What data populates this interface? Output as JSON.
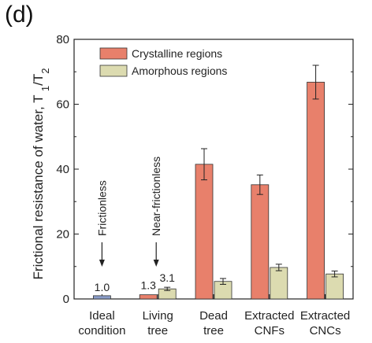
{
  "panel_label": "(d)",
  "chart_data": {
    "type": "bar",
    "ylabel": "Frictional resistance of water, T",
    "ylabel_sub1": "1",
    "ylabel_slash": "/T",
    "ylabel_sub2": "2",
    "ylim": [
      0,
      80
    ],
    "yticks": [
      "0",
      "20",
      "40",
      "60",
      "80"
    ],
    "legend_position": "top-left",
    "categories": [
      {
        "line1": "Ideal",
        "line2": "condition"
      },
      {
        "line1": "Living",
        "line2": "tree"
      },
      {
        "line1": "Dead",
        "line2": "tree"
      },
      {
        "line1": "Extracted",
        "line2": "CNFs"
      },
      {
        "line1": "Extracted",
        "line2": "CNCs"
      }
    ],
    "ideal": {
      "value": 1.0,
      "label": "1.0",
      "color": "#8a9cc9"
    },
    "series": [
      {
        "name": "Crystalline regions",
        "color": "#e8806b",
        "values": [
          null,
          1.3,
          41.5,
          35.2,
          66.8
        ],
        "errors": [
          null,
          0,
          4.8,
          3.0,
          5.2
        ]
      },
      {
        "name": "Amorphous regions",
        "color": "#dcdbb0",
        "values": [
          null,
          3.1,
          5.4,
          9.7,
          7.7
        ],
        "errors": [
          null,
          0.5,
          0.9,
          1.0,
          0.9
        ]
      }
    ],
    "data_labels": {
      "living_crystalline": "1.3",
      "living_amorphous": "3.1"
    },
    "annotations": [
      {
        "text": "Frictionless"
      },
      {
        "text": "Near-frictionless"
      }
    ]
  }
}
